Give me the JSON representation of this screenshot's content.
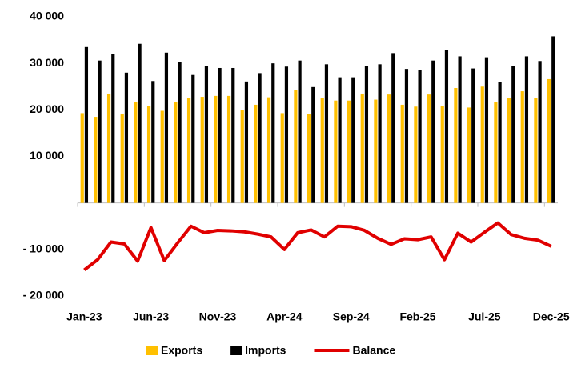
{
  "chart_data": {
    "type": "bar_line",
    "categories": [
      "Jan-23",
      null,
      null,
      null,
      null,
      "Jun-23",
      null,
      null,
      null,
      null,
      "Nov-23",
      null,
      null,
      null,
      null,
      "Apr-24",
      null,
      null,
      null,
      null,
      "Sep-24",
      null,
      null,
      null,
      null,
      "Feb-25",
      null,
      null,
      null,
      null,
      "Jul-25",
      null,
      null,
      null,
      null,
      "Dec-25"
    ],
    "series": [
      {
        "name": "Exports",
        "color": "#ffc000",
        "kind": "bar",
        "values": [
          19300,
          18500,
          23500,
          19200,
          21700,
          20800,
          19800,
          21700,
          22500,
          22800,
          23000,
          23000,
          20000,
          21100,
          22700,
          19300,
          24200,
          19100,
          22500,
          22000,
          22000,
          23500,
          22200,
          23300,
          21100,
          20700,
          23300,
          20800,
          24700,
          20500,
          25000,
          21700,
          22600,
          24000,
          22600,
          26600
        ]
      },
      {
        "name": "Imports",
        "color": "#000000",
        "kind": "bar",
        "values": [
          33500,
          30600,
          32000,
          28000,
          34200,
          26200,
          32300,
          30300,
          27500,
          29400,
          29000,
          29000,
          26100,
          27900,
          30000,
          29300,
          30600,
          24900,
          29800,
          27000,
          27000,
          29400,
          29800,
          32200,
          28800,
          28600,
          30600,
          32900,
          31500,
          28900,
          31300,
          26000,
          29400,
          31500,
          30500,
          35800
        ]
      },
      {
        "name": "Balance",
        "color": "#e00000",
        "kind": "line",
        "values": [
          -14400,
          -12200,
          -8400,
          -8800,
          -12500,
          -5300,
          -12400,
          -8600,
          -5000,
          -6400,
          -5900,
          -6000,
          -6200,
          -6700,
          -7300,
          -10000,
          -6400,
          -5800,
          -7300,
          -5000,
          -5100,
          -5900,
          -7600,
          -8900,
          -7700,
          -7900,
          -7300,
          -12200,
          -6500,
          -8400,
          -6300,
          -4300,
          -6800,
          -7600,
          -8000,
          -9300
        ]
      }
    ],
    "ylim": [
      -20000,
      40000
    ],
    "yticks": [
      {
        "value": 40000,
        "label": "40 000"
      },
      {
        "value": 30000,
        "label": "30 000"
      },
      {
        "value": 20000,
        "label": "20 000"
      },
      {
        "value": 10000,
        "label": "10 000"
      },
      {
        "value": -10000,
        "label": "- 10 000"
      },
      {
        "value": -20000,
        "label": "- 20 000"
      }
    ],
    "legend": "bottom"
  }
}
